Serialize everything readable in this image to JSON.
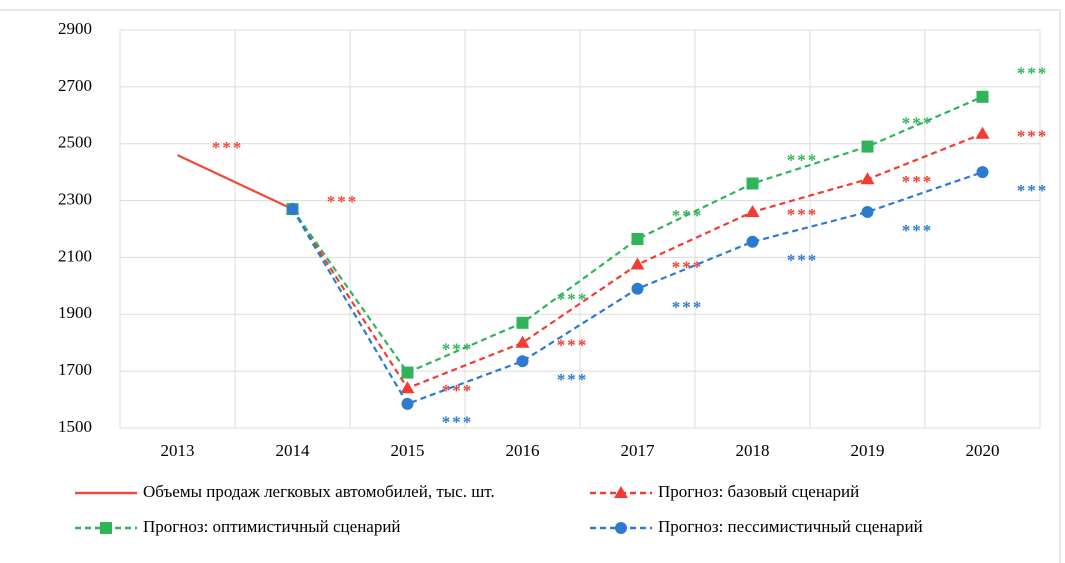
{
  "chart_data": {
    "type": "line",
    "categories": [
      "2013",
      "2014",
      "2015",
      "2016",
      "2017",
      "2018",
      "2019",
      "2020"
    ],
    "series": [
      {
        "name": "Объемы продаж легковых автомобилей, тыс. шт.",
        "color": "#f04a3c",
        "dash": false,
        "marker": null,
        "values": [
          2460,
          2270,
          null,
          null,
          null,
          null,
          null,
          null
        ],
        "value_labels": [
          "***",
          "***",
          null,
          null,
          null,
          null,
          null,
          null
        ]
      },
      {
        "name": "Прогноз: базовый сценарий",
        "color": "#f23c32",
        "dash": true,
        "marker": "triangle",
        "values": [
          null,
          2270,
          1640,
          1800,
          2075,
          2260,
          2375,
          2535
        ],
        "value_labels": [
          null,
          null,
          "***",
          "***",
          "***",
          "***",
          "***",
          "***"
        ]
      },
      {
        "name": "Прогноз: оптимистичный сценарий",
        "color": "#2fb45a",
        "dash": true,
        "marker": "square",
        "values": [
          null,
          2270,
          1695,
          1870,
          2165,
          2360,
          2490,
          2665
        ],
        "value_labels": [
          null,
          null,
          "***",
          "***",
          "***",
          "***",
          "***",
          "***"
        ]
      },
      {
        "name": "Прогноз: пессимистичный сценарий",
        "color": "#2c7bd0",
        "dash": true,
        "marker": "circle",
        "values": [
          null,
          2270,
          1585,
          1735,
          1990,
          2155,
          2260,
          2400
        ],
        "value_labels": [
          null,
          null,
          "***",
          "***",
          "***",
          "***",
          "***",
          "***"
        ]
      }
    ],
    "ylim": [
      1500,
      2900
    ],
    "yticks": [
      1500,
      1700,
      1900,
      2100,
      2300,
      2500,
      2700,
      2900
    ],
    "grid": true
  }
}
